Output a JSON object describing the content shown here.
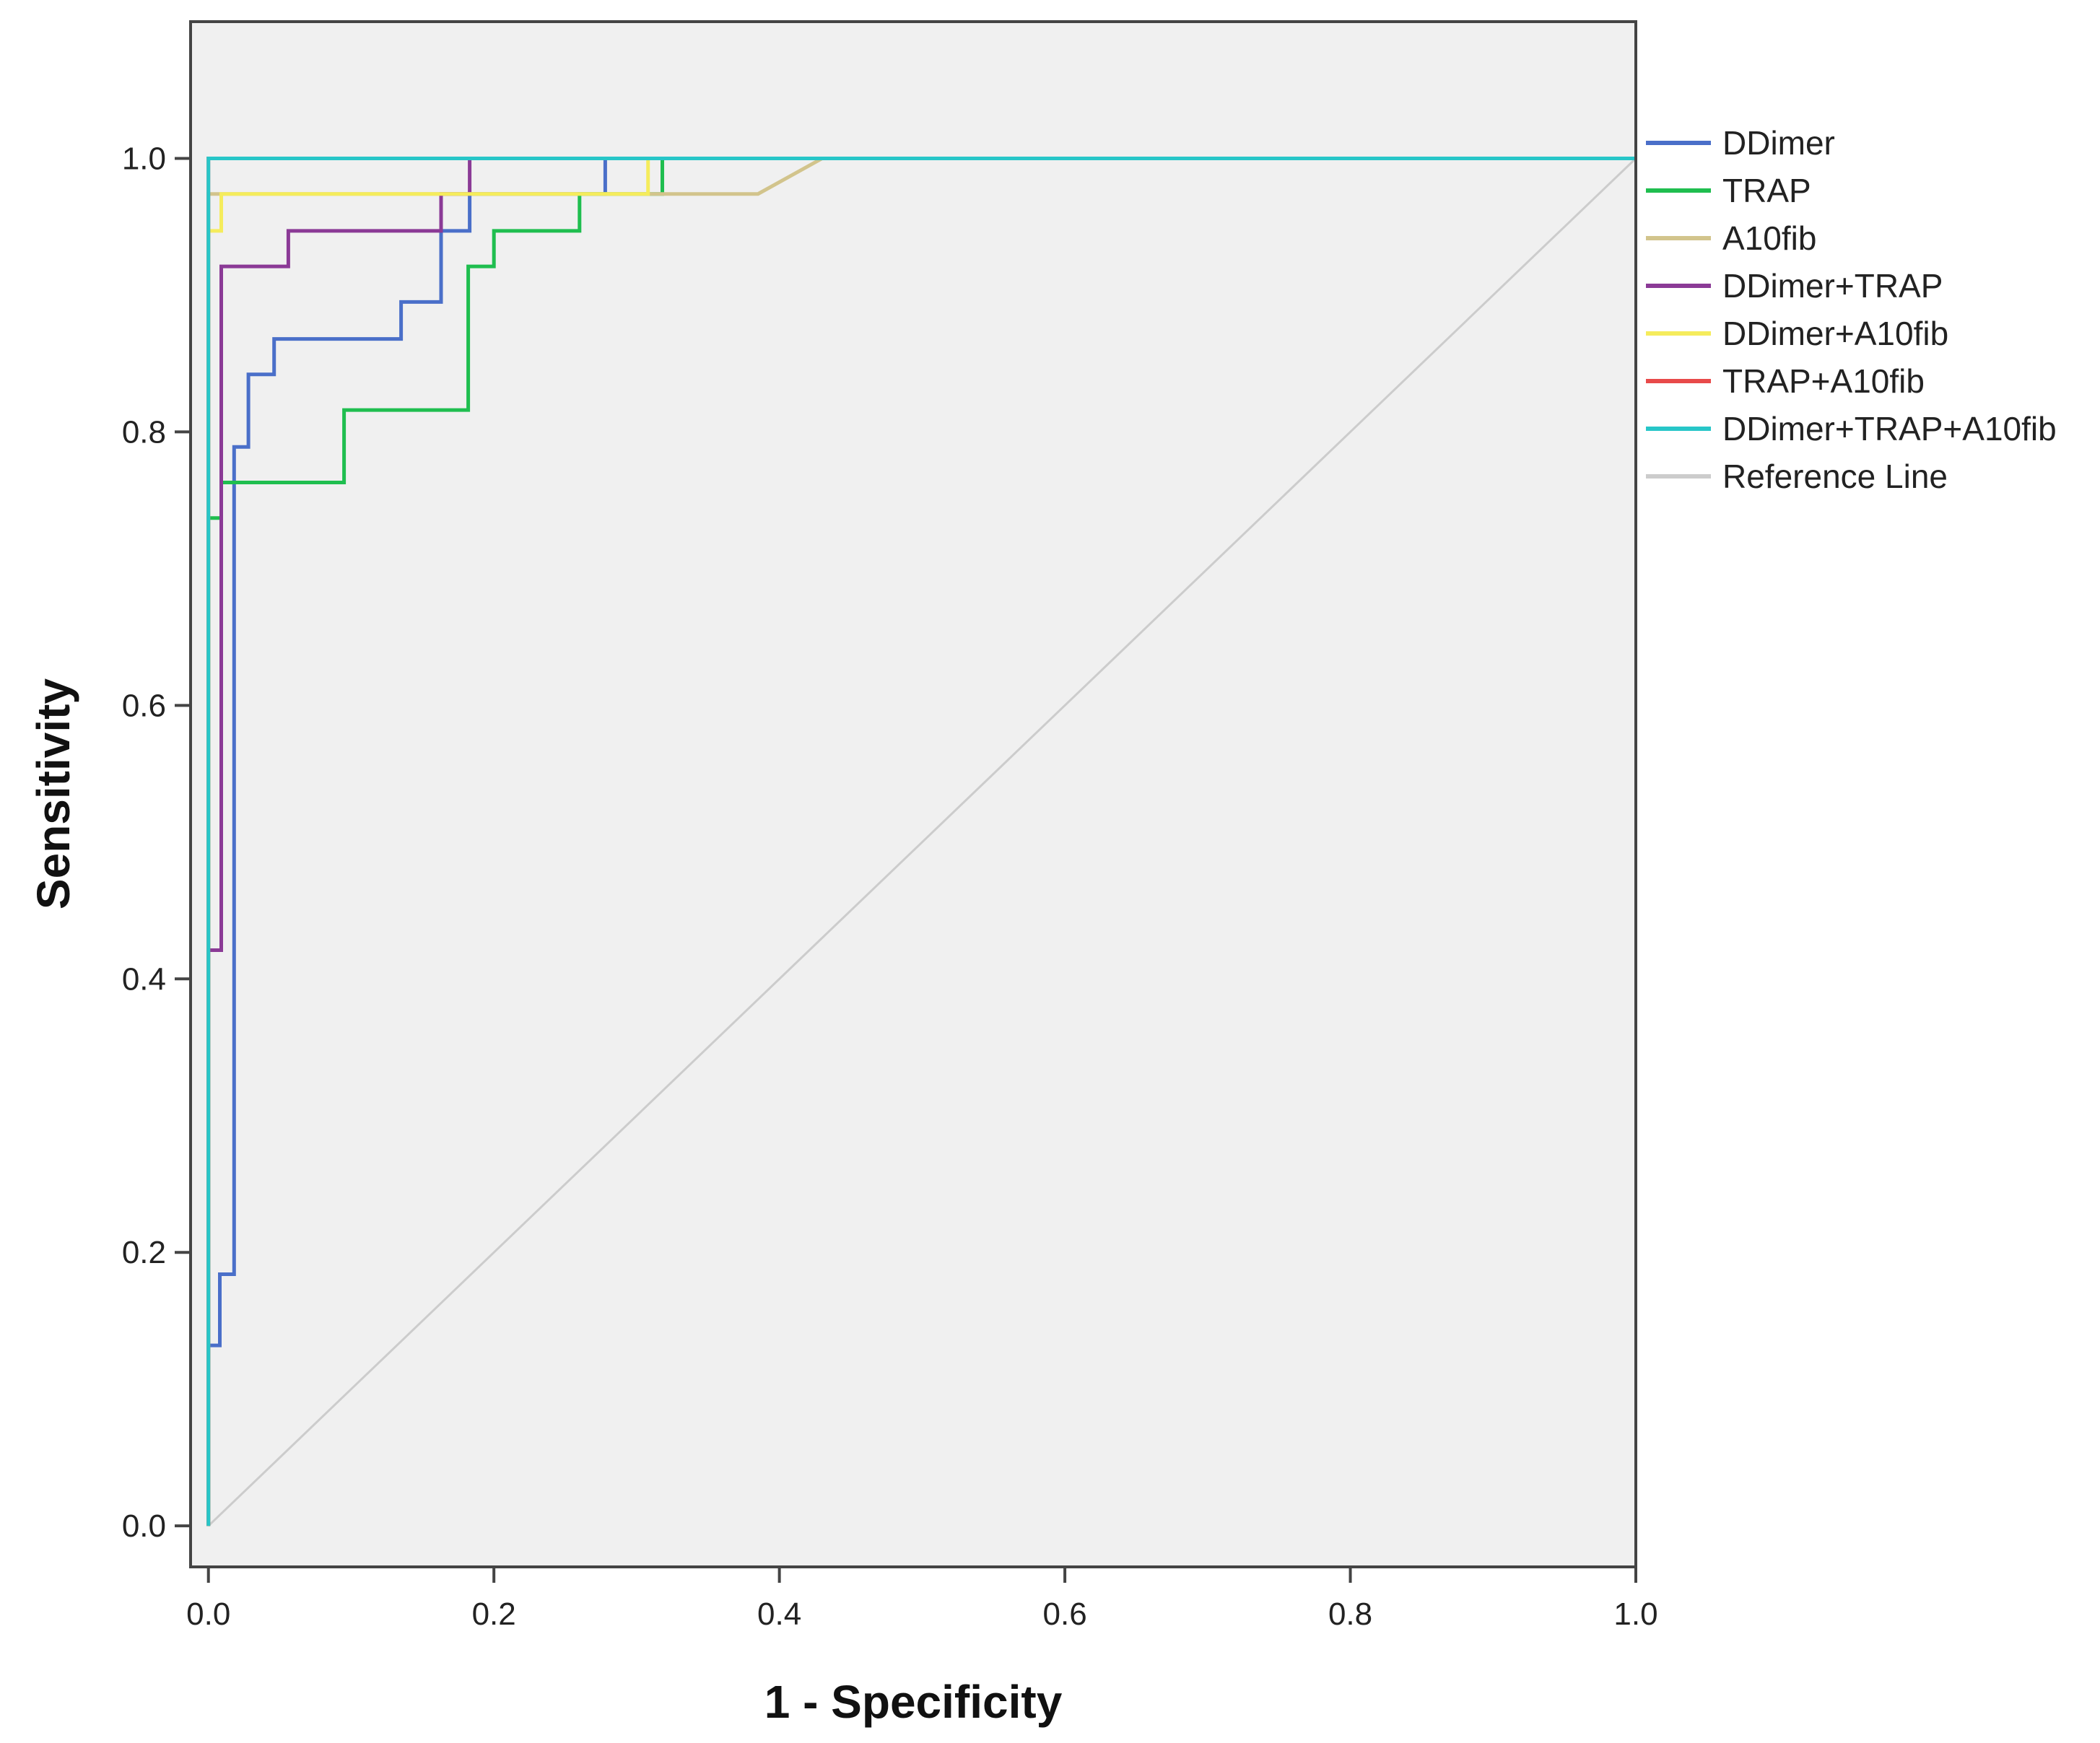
{
  "chart_data": {
    "type": "line",
    "title": "",
    "xlabel": "1 - Specificity",
    "ylabel": "Sensitivity",
    "xlim": [
      -0.0125,
      1.0
    ],
    "ylim": [
      -0.03,
      1.1
    ],
    "xticks": [
      0.0,
      0.2,
      0.4,
      0.6,
      0.8,
      1.0
    ],
    "yticks": [
      0.0,
      0.2,
      0.4,
      0.6,
      0.8,
      1.0
    ],
    "xtick_labels": [
      "0.0",
      "0.2",
      "0.4",
      "0.6",
      "0.8",
      "1.0"
    ],
    "ytick_labels": [
      "0.0",
      "0.2",
      "0.4",
      "0.6",
      "0.8",
      "1.0"
    ],
    "grid": false,
    "legend_position": "right",
    "background": "#f0f0f0",
    "series": [
      {
        "name": "DDimer",
        "color": "#4a6fc9",
        "points": [
          [
            0,
            0
          ],
          [
            0,
            0.132
          ],
          [
            0.008,
            0.132
          ],
          [
            0.008,
            0.184
          ],
          [
            0.018,
            0.184
          ],
          [
            0.018,
            0.789
          ],
          [
            0.028,
            0.789
          ],
          [
            0.028,
            0.842
          ],
          [
            0.046,
            0.842
          ],
          [
            0.046,
            0.868
          ],
          [
            0.135,
            0.868
          ],
          [
            0.135,
            0.895
          ],
          [
            0.163,
            0.895
          ],
          [
            0.163,
            0.947
          ],
          [
            0.183,
            0.947
          ],
          [
            0.183,
            0.974
          ],
          [
            0.278,
            0.974
          ],
          [
            0.278,
            1.0
          ],
          [
            1.0,
            1.0
          ]
        ]
      },
      {
        "name": "TRAP",
        "color": "#1fbe4f",
        "points": [
          [
            0,
            0
          ],
          [
            0,
            0.737
          ],
          [
            0.009,
            0.737
          ],
          [
            0.009,
            0.763
          ],
          [
            0.095,
            0.763
          ],
          [
            0.095,
            0.816
          ],
          [
            0.182,
            0.816
          ],
          [
            0.182,
            0.921
          ],
          [
            0.2,
            0.921
          ],
          [
            0.2,
            0.947
          ],
          [
            0.26,
            0.947
          ],
          [
            0.26,
            0.974
          ],
          [
            0.318,
            0.974
          ],
          [
            0.318,
            1.0
          ],
          [
            1.0,
            1.0
          ]
        ]
      },
      {
        "name": "A10fib",
        "color": "#d2c48c",
        "points": [
          [
            0,
            0
          ],
          [
            0,
            0.974
          ],
          [
            0.385,
            0.974
          ],
          [
            0.43,
            1.0
          ],
          [
            1.0,
            1.0
          ]
        ]
      },
      {
        "name": "DDimer+TRAP",
        "color": "#8b3a96",
        "points": [
          [
            0,
            0
          ],
          [
            0,
            0.421
          ],
          [
            0.009,
            0.421
          ],
          [
            0.009,
            0.921
          ],
          [
            0.056,
            0.921
          ],
          [
            0.056,
            0.947
          ],
          [
            0.163,
            0.947
          ],
          [
            0.163,
            0.974
          ],
          [
            0.183,
            0.974
          ],
          [
            0.183,
            1.0
          ],
          [
            1.0,
            1.0
          ]
        ]
      },
      {
        "name": "DDimer+A10fib",
        "color": "#f5ec5c",
        "points": [
          [
            0,
            0
          ],
          [
            0,
            0.947
          ],
          [
            0.009,
            0.947
          ],
          [
            0.009,
            0.974
          ],
          [
            0.308,
            0.974
          ],
          [
            0.308,
            1.0
          ],
          [
            1.0,
            1.0
          ]
        ]
      },
      {
        "name": "TRAP+A10fib",
        "color": "#e84a4a",
        "points": [
          [
            0,
            0
          ],
          [
            0,
            1.0
          ],
          [
            1.0,
            1.0
          ]
        ]
      },
      {
        "name": "DDimer+TRAP+A10fib",
        "color": "#27c6c8",
        "points": [
          [
            0,
            0
          ],
          [
            0,
            1.0
          ],
          [
            1.0,
            1.0
          ]
        ]
      },
      {
        "name": "Reference Line",
        "color": "#cccccc",
        "points": [
          [
            0,
            0
          ],
          [
            1.0,
            1.0
          ]
        ]
      }
    ]
  }
}
